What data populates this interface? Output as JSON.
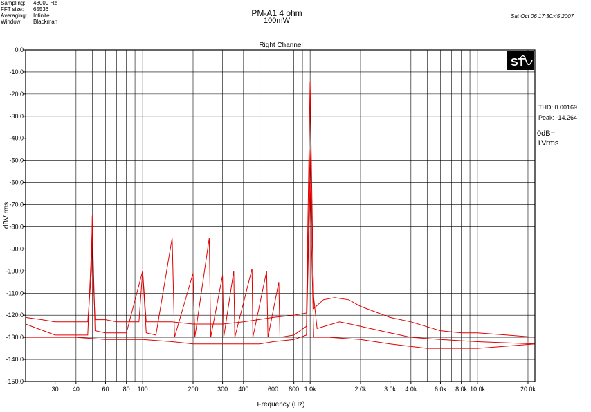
{
  "header": {
    "settings": [
      {
        "label": "Sampling:",
        "value": "48000 Hz"
      },
      {
        "label": "FFT size:",
        "value": "65536"
      },
      {
        "label": "Averaging:",
        "value": "Infinite"
      },
      {
        "label": "Window:",
        "value": "Blackman"
      }
    ],
    "title": "PM-A1  4 ohm",
    "subtitle": "100mW",
    "timestamp": "Sat Oct 06 17:30:45 2007"
  },
  "side_readout": {
    "thd": "THD: 0.00169",
    "peak": "Peak: -14.264",
    "ref_db": "0dB=",
    "ref_value": "1Vrms"
  },
  "logo_text": "ST",
  "colors": {
    "trace": "#e00000",
    "grid": "#000000",
    "background": "#ffffff"
  },
  "chart_data": {
    "type": "line",
    "title": "Right Channel",
    "xlabel": "Frequency (Hz)",
    "ylabel": "dBV rms",
    "xscale": "log",
    "xlim": [
      20,
      22000
    ],
    "ylim": [
      -150,
      0
    ],
    "y_ticks": [
      0,
      -10,
      -20,
      -30,
      -40,
      -50,
      -60,
      -70,
      -80,
      -90,
      -100,
      -110,
      -120,
      -130,
      -140,
      -150
    ],
    "y_tick_labels": [
      "0.0",
      "-10.0",
      "-20.0",
      "-30.0",
      "-40.0",
      "-50.0",
      "-60.0",
      "-70.0",
      "-80.0",
      "-90.0",
      "-100.0",
      "-110.0",
      "-120.0",
      "-130.0",
      "-140.0",
      "-150.0"
    ],
    "x_labeled_ticks": [
      30,
      40,
      60,
      80,
      100,
      200,
      300,
      400,
      600,
      800,
      1000,
      2000,
      3000,
      4000,
      6000,
      8000,
      10000,
      20000
    ],
    "x_tick_labels": [
      "30",
      "40",
      "60",
      "80",
      "100",
      "200",
      "300",
      "400",
      "600",
      "800",
      "1.0k",
      "2.0k",
      "3.0k",
      "4.0k",
      "6.0k",
      "8.0k",
      "10.0k",
      "20.0k"
    ],
    "x_gridlines": [
      30,
      40,
      50,
      60,
      70,
      80,
      90,
      100,
      200,
      300,
      400,
      500,
      600,
      700,
      800,
      900,
      1000,
      2000,
      3000,
      4000,
      5000,
      6000,
      7000,
      8000,
      9000,
      10000,
      20000
    ],
    "grid": true,
    "series": [
      {
        "values": [
          [
            20,
            -121
          ],
          [
            25,
            -122
          ],
          [
            30,
            -123
          ],
          [
            40,
            -123
          ],
          [
            47,
            -123
          ],
          [
            49.5,
            -100
          ],
          [
            50,
            -75
          ],
          [
            50.5,
            -100
          ],
          [
            52,
            -122
          ],
          [
            60,
            -122
          ],
          [
            70,
            -123
          ],
          [
            80,
            -123
          ],
          [
            95,
            -123
          ],
          [
            100,
            -100
          ],
          [
            105,
            -123
          ],
          [
            150,
            -123
          ],
          [
            200,
            -124
          ],
          [
            300,
            -124
          ],
          [
            400,
            -123
          ],
          [
            600,
            -121
          ],
          [
            800,
            -120
          ],
          [
            950,
            -119
          ],
          [
            1000,
            -14.3
          ],
          [
            1050,
            -117
          ],
          [
            1200,
            -113
          ],
          [
            1400,
            -112
          ],
          [
            1700,
            -113
          ],
          [
            2000,
            -116
          ],
          [
            3000,
            -121
          ],
          [
            4000,
            -123
          ],
          [
            6000,
            -127
          ],
          [
            8000,
            -128
          ],
          [
            10000,
            -128
          ],
          [
            15000,
            -129
          ],
          [
            22000,
            -130
          ]
        ]
      },
      {
        "values": [
          [
            20,
            -124
          ],
          [
            30,
            -129
          ],
          [
            40,
            -129
          ],
          [
            47,
            -129
          ],
          [
            49.5,
            -90
          ],
          [
            50,
            -80
          ],
          [
            50.5,
            -90
          ],
          [
            52,
            -127
          ],
          [
            60,
            -128
          ],
          [
            80,
            -128
          ],
          [
            100,
            -100
          ],
          [
            105,
            -128
          ],
          [
            120,
            -129
          ],
          [
            150,
            -85
          ],
          [
            155,
            -130
          ],
          [
            200,
            -101
          ],
          [
            205,
            -130
          ],
          [
            250,
            -85
          ],
          [
            255,
            -130
          ],
          [
            300,
            -102
          ],
          [
            305,
            -130
          ],
          [
            350,
            -100
          ],
          [
            355,
            -130
          ],
          [
            450,
            -99
          ],
          [
            455,
            -130
          ],
          [
            550,
            -100
          ],
          [
            560,
            -130
          ],
          [
            650,
            -105
          ],
          [
            660,
            -130
          ],
          [
            800,
            -129
          ],
          [
            950,
            -125
          ],
          [
            1000,
            -45
          ],
          [
            1050,
            -112
          ],
          [
            1100,
            -126
          ],
          [
            1500,
            -123
          ],
          [
            2000,
            -125
          ],
          [
            3000,
            -128
          ],
          [
            4000,
            -130
          ],
          [
            6000,
            -131
          ],
          [
            10000,
            -132
          ],
          [
            22000,
            -133
          ]
        ]
      },
      {
        "values": [
          [
            20,
            -130
          ],
          [
            40,
            -130
          ],
          [
            60,
            -131
          ],
          [
            80,
            -131
          ],
          [
            100,
            -131
          ],
          [
            150,
            -132
          ],
          [
            200,
            -133
          ],
          [
            300,
            -133
          ],
          [
            400,
            -133
          ],
          [
            500,
            -133
          ],
          [
            600,
            -132
          ],
          [
            800,
            -131
          ],
          [
            950,
            -129
          ],
          [
            1000,
            -60
          ],
          [
            1050,
            -130
          ],
          [
            1300,
            -130
          ],
          [
            2000,
            -131
          ],
          [
            3000,
            -133
          ],
          [
            5000,
            -135
          ],
          [
            8000,
            -135
          ],
          [
            10000,
            -135
          ],
          [
            15000,
            -134
          ],
          [
            22000,
            -133
          ]
        ]
      }
    ]
  }
}
